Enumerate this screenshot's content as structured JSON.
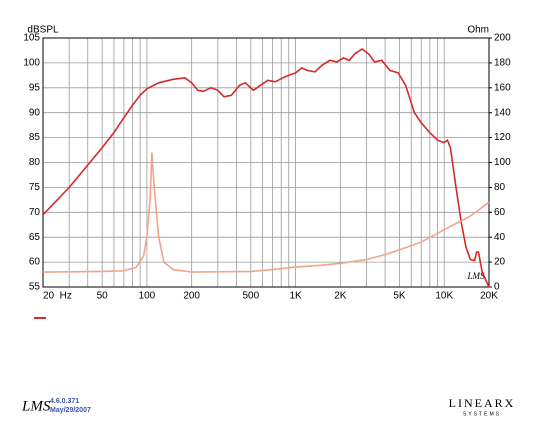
{
  "chart_data": {
    "type": "line",
    "ylabel": "dBSPL",
    "y2label": "Ohm",
    "watermark": "LMS",
    "xscale": "log",
    "xlim": [
      20,
      20000
    ],
    "xticks": [
      {
        "value": 20,
        "label": "20  Hz"
      },
      50,
      100,
      200,
      500,
      {
        "value": 1000,
        "label": "1K"
      },
      {
        "value": 2000,
        "label": "2K"
      },
      {
        "value": 5000,
        "label": "5K"
      },
      {
        "value": 10000,
        "label": "10K"
      },
      {
        "value": 20000,
        "label": "20K"
      }
    ],
    "xminor": [
      30,
      40,
      60,
      70,
      80,
      90,
      300,
      400,
      600,
      700,
      800,
      900,
      3000,
      4000,
      6000,
      7000,
      8000,
      9000
    ],
    "ylim": [
      55,
      105
    ],
    "yticks": [
      55,
      60,
      65,
      70,
      75,
      80,
      85,
      90,
      95,
      100,
      105
    ],
    "y2lim": [
      0,
      200
    ],
    "y2ticks": [
      0,
      20,
      40,
      60,
      80,
      100,
      120,
      140,
      160,
      180,
      200
    ],
    "grid": true,
    "series": [
      {
        "color": "#d42a2a",
        "x": [
          20,
          30,
          40,
          50,
          60,
          70,
          80,
          90,
          100,
          120,
          150,
          180,
          200,
          220,
          240,
          270,
          300,
          330,
          370,
          420,
          460,
          520,
          580,
          650,
          730,
          820,
          900,
          1000,
          1100,
          1200,
          1350,
          1500,
          1700,
          1900,
          2100,
          2300,
          2500,
          2800,
          3100,
          3400,
          3800,
          4300,
          4900,
          5500,
          6300,
          7000,
          8000,
          9000,
          10000,
          10500,
          11000,
          12000,
          13000,
          14000,
          15000,
          16000,
          16500,
          17000,
          18000,
          20000
        ],
        "values": [
          69.5,
          75,
          79.5,
          83,
          86,
          89,
          91.5,
          93.5,
          94.8,
          96,
          96.7,
          97,
          96,
          94.5,
          94.3,
          95,
          94.5,
          93.2,
          93.5,
          95.5,
          96,
          94.5,
          95.5,
          96.5,
          96.2,
          97,
          97.5,
          98,
          99,
          98.5,
          98.2,
          99.5,
          100.5,
          100.2,
          101,
          100.5,
          101.8,
          102.8,
          101.8,
          100.2,
          100.5,
          98.5,
          98,
          95.5,
          90,
          88,
          86,
          84.5,
          84,
          84.5,
          83,
          75,
          68,
          63,
          60.5,
          60.3,
          62,
          62,
          58,
          55
        ]
      },
      {
        "color": "#f0a58a",
        "axis": "y2",
        "x": [
          20,
          50,
          70,
          85,
          95,
          100,
          105,
          108,
          112,
          120,
          130,
          150,
          200,
          500,
          700,
          1000,
          1500,
          2000,
          3000,
          4000,
          5000,
          7000,
          10000,
          15000,
          20000
        ],
        "values": [
          12,
          12.5,
          13,
          16,
          25,
          40,
          70,
          108,
          80,
          40,
          20,
          14,
          12,
          12.5,
          14,
          16,
          17.5,
          19,
          22,
          26,
          30,
          36,
          46,
          57,
          68
        ]
      }
    ]
  },
  "footer": {
    "logo": "LMS",
    "version": "4.6.0.371",
    "date": "May/29/2007",
    "brand": "LINEARX",
    "brand_sub": "SYSTEMS"
  }
}
